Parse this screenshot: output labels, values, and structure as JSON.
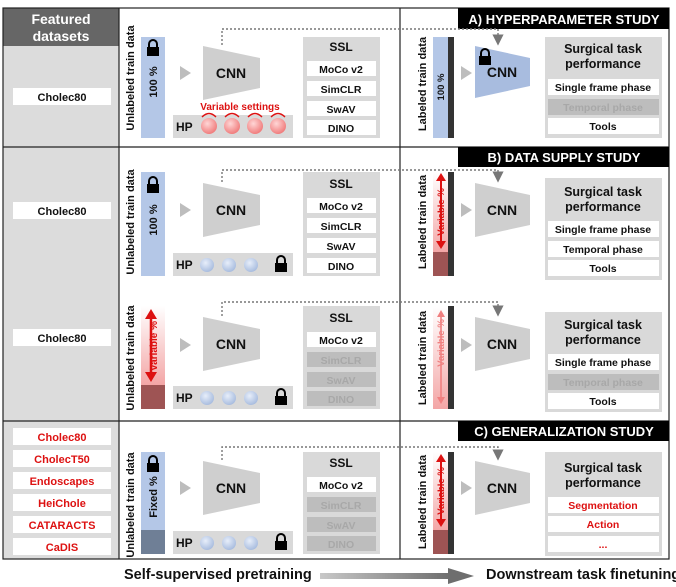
{
  "colors": {
    "left_panel": "#dcdcdc",
    "header_dark": "#666666",
    "box_gray": "#d9d9d9",
    "cnn_gray": "#cfcfcf",
    "cnn_blue": "#a8bcdf",
    "bar_blue": "#b4c7e7",
    "bar_red": "#f3a6a6",
    "bar_dark_red": "#9e5454",
    "bar_slate": "#6f7f96",
    "accent_red": "#dd1111",
    "banner_black": "#000000",
    "disabled_text": "#a8a8a8",
    "disabled_box": "#bdbdbd"
  },
  "left_header": [
    "Featured",
    "datasets"
  ],
  "datasets": {
    "study_a": "Cholec80",
    "study_b1": "Cholec80",
    "study_b2": "Cholec80",
    "study_c": [
      "Cholec80",
      "CholecT50",
      "Endoscapes",
      "HeiChole",
      "CATARACTS",
      "CaDIS"
    ]
  },
  "banners": {
    "a": "A) HYPERPARAMETER STUDY",
    "b": "B) DATA SUPPLY STUDY",
    "c": "C) GENERALIZATION STUDY"
  },
  "labels": {
    "unlabeled": "Unlabeled train data",
    "labeled": "Labeled train data",
    "hundred_pct": "100 %",
    "variable_pct": "Variable %",
    "fixed_pct": "Fixed %",
    "cnn": "CNN",
    "hp": "HP",
    "ssl": "SSL",
    "variable_settings": "Variable settings",
    "task_title": [
      "Surgical task",
      "performance"
    ]
  },
  "ssl_methods": [
    "MoCo v2",
    "SimCLR",
    "SwAV",
    "DINO"
  ],
  "tasks_ab": [
    "Single frame phase",
    "Temporal phase",
    "Tools"
  ],
  "tasks_c": [
    "Segmentation",
    "Action",
    "..."
  ],
  "footer": {
    "left": "Self-supervised pretraining",
    "right": "Downstream task finetuning"
  },
  "icons": [
    "lock-icon",
    "play-arrow-icon",
    "dotted-arrow-icon",
    "double-arrow-icon",
    "gradient-arrow-icon"
  ]
}
